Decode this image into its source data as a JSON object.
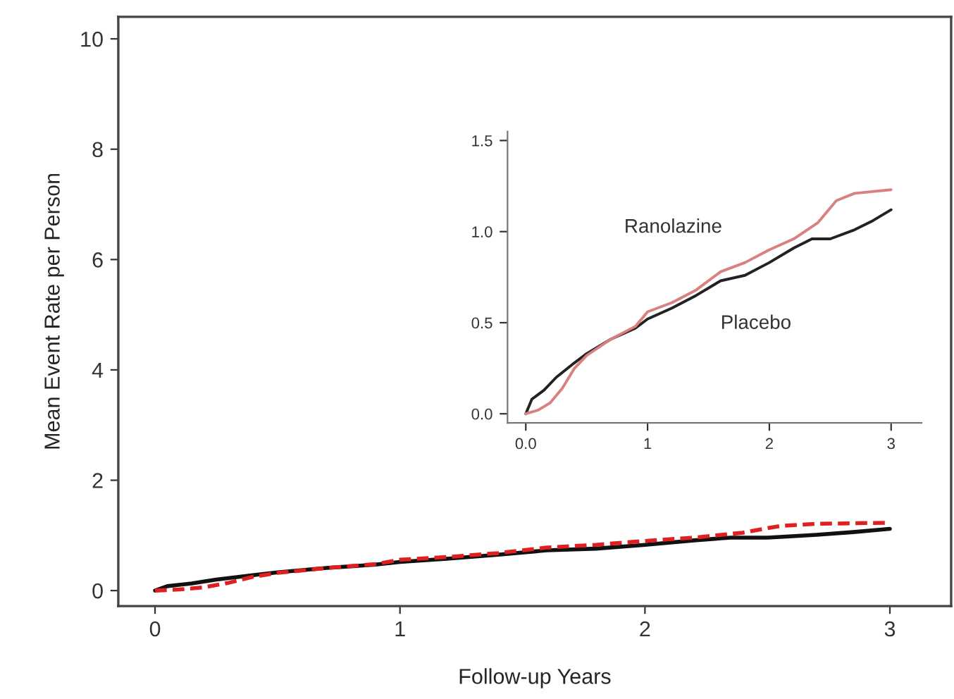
{
  "chart_data": [
    {
      "type": "line",
      "xlabel": "Follow-up Years",
      "ylabel": "Mean Event Rate per Person",
      "xlim": [
        -0.15,
        3.25
      ],
      "ylim": [
        -0.28,
        10.4
      ],
      "xticks": [
        0,
        1,
        2,
        3
      ],
      "yticks": [
        0,
        2,
        4,
        6,
        8,
        10
      ],
      "grid": false,
      "legend": false,
      "series": [
        {
          "color": "#111111",
          "line_style": "solid",
          "x": [
            0,
            0.05,
            0.15,
            0.25,
            0.4,
            0.5,
            0.7,
            0.9,
            1.0,
            1.2,
            1.4,
            1.6,
            1.8,
            2.0,
            2.2,
            2.35,
            2.5,
            2.7,
            2.85,
            3.0
          ],
          "values": [
            0,
            0.08,
            0.13,
            0.2,
            0.28,
            0.33,
            0.41,
            0.47,
            0.52,
            0.58,
            0.65,
            0.73,
            0.76,
            0.83,
            0.91,
            0.96,
            0.96,
            1.01,
            1.06,
            1.12
          ]
        },
        {
          "color": "#e02020",
          "line_style": "dashed",
          "x": [
            0,
            0.1,
            0.2,
            0.3,
            0.4,
            0.5,
            0.7,
            0.9,
            1.0,
            1.2,
            1.4,
            1.6,
            1.8,
            2.0,
            2.2,
            2.4,
            2.55,
            2.7,
            3.0
          ],
          "values": [
            0,
            0.02,
            0.06,
            0.14,
            0.25,
            0.32,
            0.41,
            0.48,
            0.56,
            0.61,
            0.68,
            0.78,
            0.83,
            0.9,
            0.96,
            1.05,
            1.17,
            1.21,
            1.23
          ]
        }
      ]
    },
    {
      "type": "line",
      "xlim": [
        -0.15,
        3.25
      ],
      "ylim": [
        -0.05,
        1.55
      ],
      "xticks": [
        {
          "value": 0,
          "label": "0.0"
        },
        1,
        2,
        3
      ],
      "yticks": [
        {
          "value": 0,
          "label": "0.0"
        },
        {
          "value": 0.5,
          "label": "0.5"
        },
        {
          "value": 1.0,
          "label": "1.0"
        },
        {
          "value": 1.5,
          "label": "1.5"
        }
      ],
      "grid": false,
      "legend": false,
      "series": [
        {
          "name": "Placebo",
          "color": "#222222",
          "line_style": "solid",
          "x": [
            0,
            0.05,
            0.15,
            0.25,
            0.4,
            0.5,
            0.7,
            0.9,
            1.0,
            1.2,
            1.4,
            1.6,
            1.8,
            2.0,
            2.2,
            2.35,
            2.5,
            2.7,
            2.85,
            3.0
          ],
          "values": [
            0,
            0.08,
            0.13,
            0.2,
            0.28,
            0.33,
            0.41,
            0.47,
            0.52,
            0.58,
            0.65,
            0.73,
            0.76,
            0.83,
            0.91,
            0.96,
            0.96,
            1.01,
            1.06,
            1.12
          ]
        },
        {
          "name": "Ranolazine",
          "color": "#d98080",
          "line_style": "solid",
          "x": [
            0,
            0.1,
            0.2,
            0.3,
            0.4,
            0.5,
            0.7,
            0.9,
            1.0,
            1.2,
            1.4,
            1.6,
            1.8,
            2.0,
            2.2,
            2.4,
            2.55,
            2.7,
            3.0
          ],
          "values": [
            0,
            0.02,
            0.06,
            0.14,
            0.25,
            0.32,
            0.41,
            0.48,
            0.56,
            0.61,
            0.68,
            0.78,
            0.83,
            0.9,
            0.96,
            1.05,
            1.17,
            1.21,
            1.23
          ]
        }
      ]
    }
  ]
}
